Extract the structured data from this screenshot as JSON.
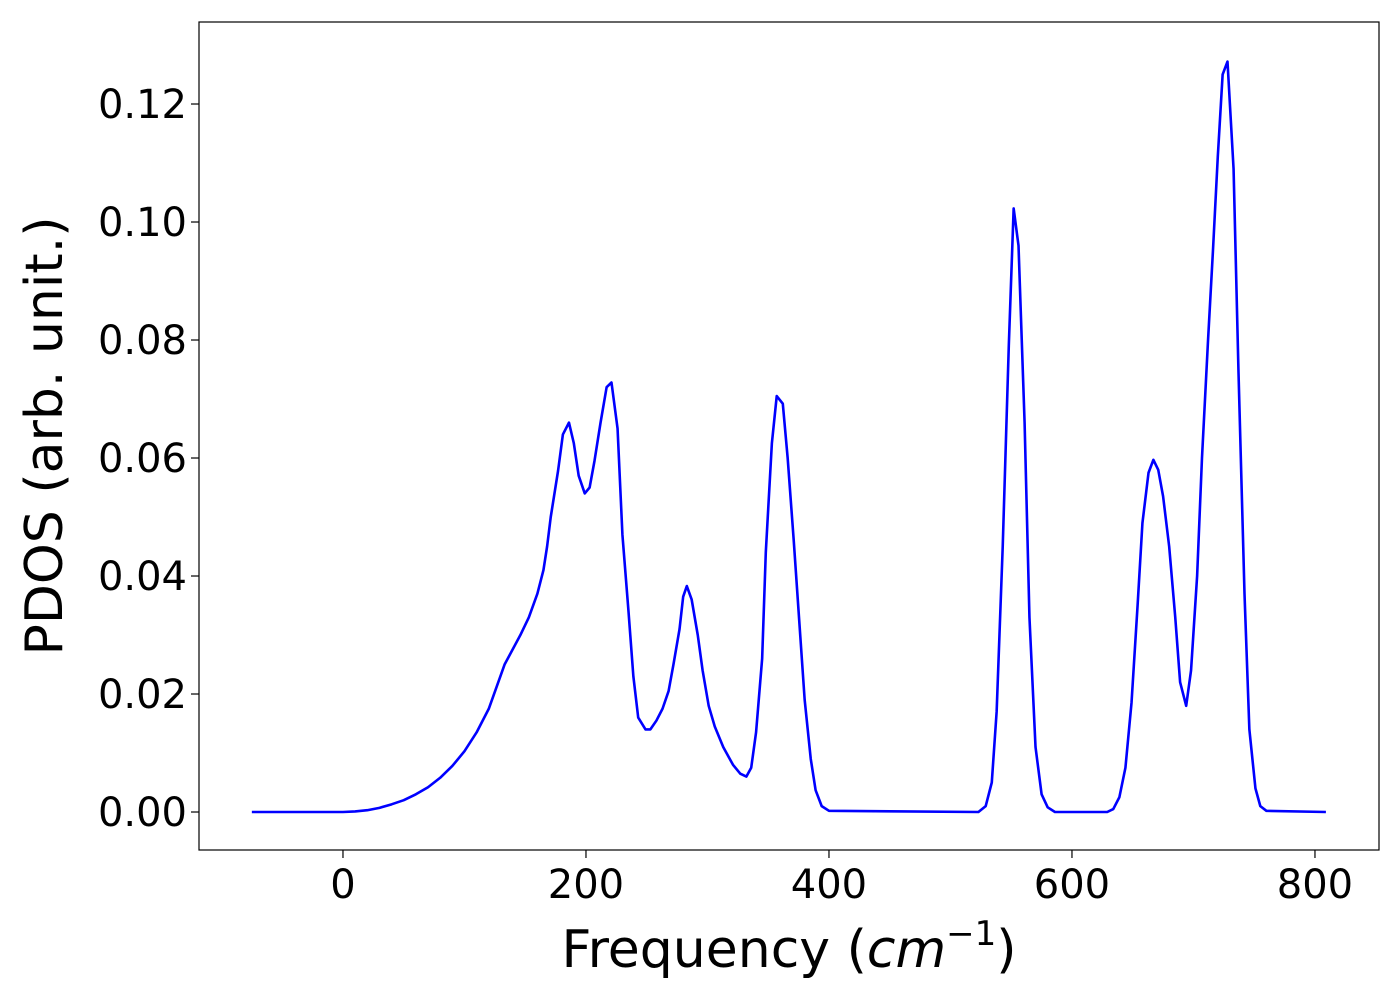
{
  "chart_data": {
    "type": "line",
    "xlabel": [
      "Frequency (",
      "cm",
      "−1",
      ")"
    ],
    "ylabel": "PDOS (arb. unit.)",
    "x": [
      -75,
      0,
      10,
      20,
      30,
      40,
      50,
      60,
      70,
      80,
      90,
      100,
      110,
      120,
      133,
      146,
      153,
      160,
      165,
      168,
      171,
      177,
      181,
      186,
      190,
      194,
      199,
      203,
      207,
      212,
      217,
      221,
      226,
      230,
      235,
      239,
      243,
      249,
      253,
      258,
      263,
      268,
      272,
      277,
      280,
      283,
      287,
      292,
      296,
      301,
      306,
      313,
      321,
      327,
      332,
      336,
      340,
      345,
      348,
      353,
      357,
      362,
      366,
      371,
      376,
      380,
      385,
      389,
      394,
      400,
      523,
      529,
      534,
      538,
      543,
      548,
      552,
      556,
      561,
      565,
      570,
      575,
      580,
      586,
      629,
      634,
      639,
      644,
      649,
      654,
      658,
      663,
      667,
      671,
      675,
      680,
      685,
      689,
      694,
      698,
      703,
      707,
      712,
      716,
      720,
      724,
      728,
      733,
      737,
      742,
      746,
      751,
      755,
      760,
      809
    ],
    "values": [
      0,
      0,
      0.0001,
      0.0003,
      0.0007,
      0.0013,
      0.002,
      0.003,
      0.0042,
      0.0058,
      0.0078,
      0.0103,
      0.0135,
      0.0175,
      0.025,
      0.03,
      0.033,
      0.037,
      0.041,
      0.045,
      0.05,
      0.0578,
      0.064,
      0.066,
      0.0625,
      0.057,
      0.054,
      0.055,
      0.0595,
      0.066,
      0.072,
      0.0728,
      0.065,
      0.047,
      0.034,
      0.023,
      0.016,
      0.014,
      0.014,
      0.0155,
      0.0175,
      0.0205,
      0.025,
      0.031,
      0.0365,
      0.0383,
      0.036,
      0.03,
      0.024,
      0.018,
      0.0145,
      0.011,
      0.008,
      0.0065,
      0.006,
      0.0075,
      0.0135,
      0.026,
      0.044,
      0.0625,
      0.0705,
      0.0692,
      0.06,
      0.046,
      0.031,
      0.019,
      0.009,
      0.0037,
      0.001,
      0.0002,
      0,
      0.001,
      0.005,
      0.017,
      0.045,
      0.079,
      0.1023,
      0.096,
      0.066,
      0.033,
      0.011,
      0.003,
      0.0008,
      0,
      0,
      0.0005,
      0.0025,
      0.0075,
      0.0185,
      0.035,
      0.049,
      0.0575,
      0.0597,
      0.058,
      0.0535,
      0.045,
      0.033,
      0.022,
      0.018,
      0.024,
      0.04,
      0.06,
      0.08,
      0.095,
      0.111,
      0.125,
      0.1272,
      0.109,
      0.075,
      0.037,
      0.014,
      0.004,
      0.001,
      0.0002,
      0
    ],
    "color": "#0000ff",
    "xlim": [
      -118.5,
      852.7
    ],
    "ylim": [
      -0.00644,
      0.1339
    ],
    "xticks": [
      0,
      200,
      400,
      600,
      800
    ],
    "yticks": [
      {
        "value": 0,
        "label": "0.00"
      },
      0.02,
      0.04,
      0.06,
      0.08,
      {
        "value": 0.1,
        "label": "0.10"
      },
      0.12
    ],
    "grid": false
  }
}
